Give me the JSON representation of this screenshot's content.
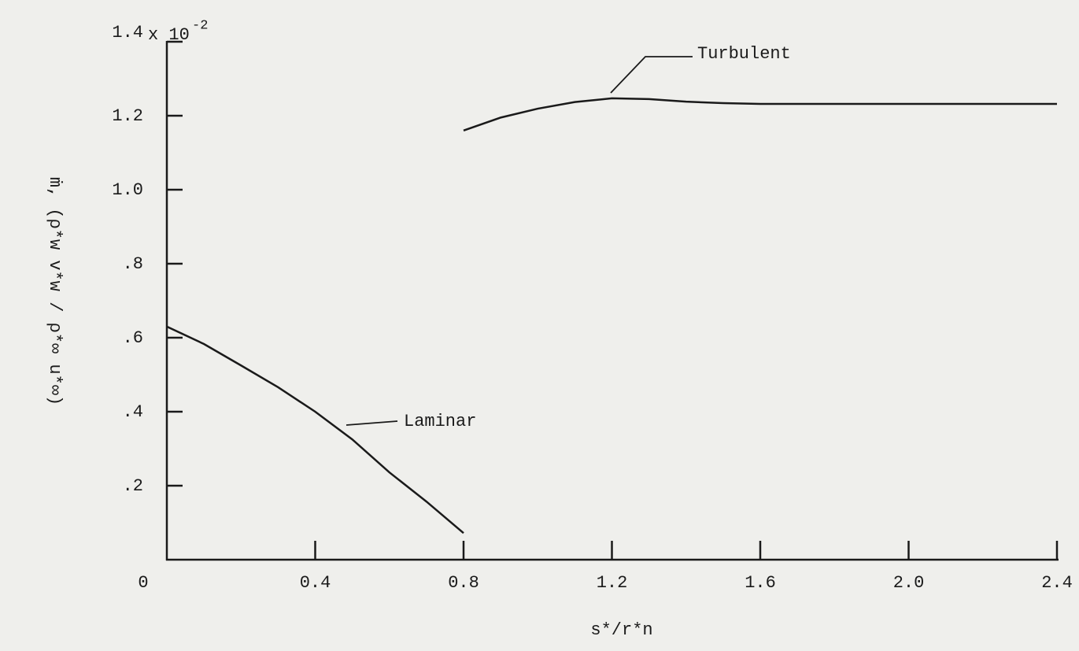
{
  "chart_data": {
    "type": "line",
    "xlabel": "s*/r*n",
    "ylabel": "ṁ, (ρ*w v*w / ρ*∞ u*∞)",
    "multiplier": "x 10",
    "multiplier_exponent": "-2",
    "xlim": [
      0,
      2.4
    ],
    "ylim": [
      0,
      1.4
    ],
    "xticks": [
      0,
      0.4,
      0.8,
      1.2,
      1.6,
      {
        "value": 2,
        "label": "2.0"
      },
      2.4
    ],
    "yticks": [
      {
        "value": 0.2,
        "label": ".2"
      },
      {
        "value": 0.4,
        "label": ".4"
      },
      {
        "value": 0.6,
        "label": ".6"
      },
      {
        "value": 0.8,
        "label": ".8"
      },
      {
        "value": 1,
        "label": "1.0"
      },
      1.2,
      1.4
    ],
    "color": "#1a1a1a",
    "series": [
      {
        "name": "Laminar",
        "color": "#1a1a1a",
        "x": [
          0,
          0.1,
          0.2,
          0.3,
          0.4,
          0.5,
          0.6,
          0.7,
          0.8
        ],
        "values": [
          0.63,
          0.583,
          0.525,
          0.466,
          0.4,
          0.325,
          0.236,
          0.157,
          0.072
        ]
      },
      {
        "name": "Turbulent",
        "color": "#1a1a1a",
        "x": [
          0.8,
          0.9,
          1.0,
          1.1,
          1.2,
          1.3,
          1.4,
          1.5,
          1.6,
          2.0,
          2.4
        ],
        "values": [
          1.16,
          1.195,
          1.219,
          1.237,
          1.247,
          1.245,
          1.238,
          1.234,
          1.232,
          1.232,
          1.232
        ]
      }
    ]
  }
}
